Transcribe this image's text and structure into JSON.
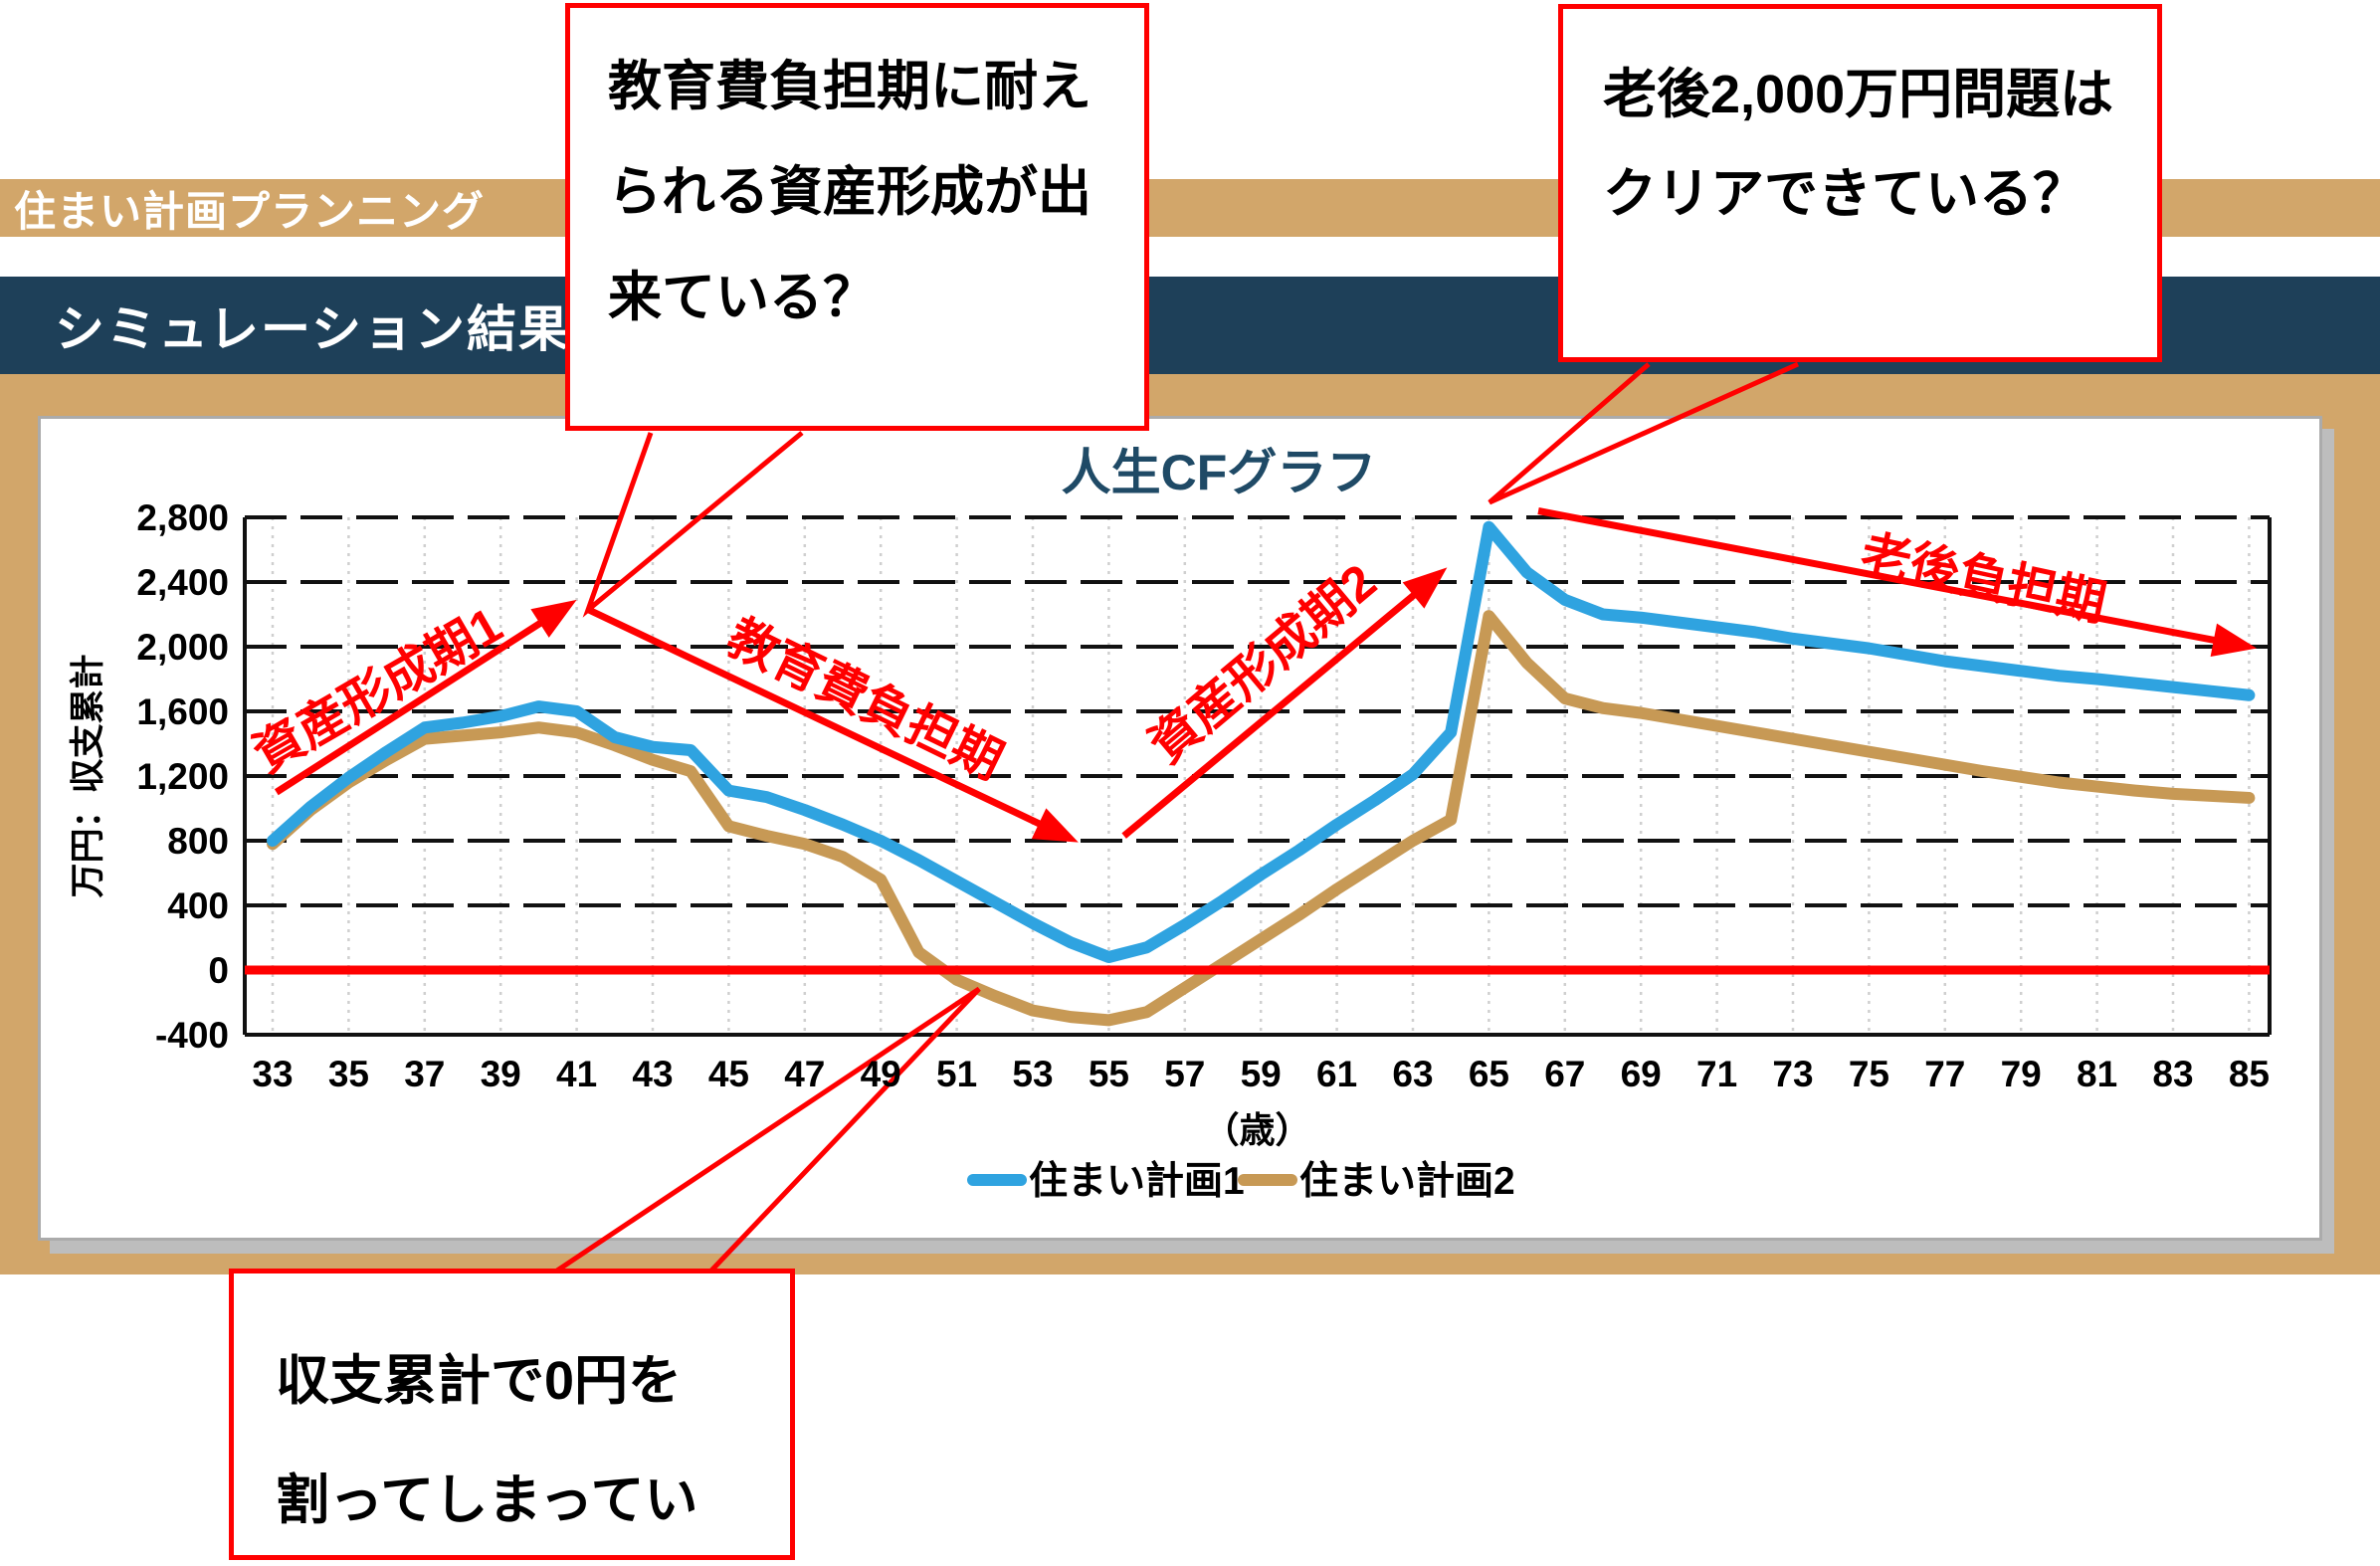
{
  "page": {
    "title_bar": "住まい計画プランニング",
    "section_bar": "シミュレーション結果"
  },
  "colors": {
    "tan_bar": "#D2A66A",
    "navy_bar": "#1E4059",
    "chart_title": "#1F4A66",
    "series1": "#2FA3E0",
    "series2": "#C79955",
    "annotation_red": "#FF0000",
    "grid_black": "#111111",
    "grid_gray": "#CFCFCF",
    "panel_border_gray": "#ABABAB"
  },
  "callouts": {
    "education": {
      "lines": [
        "教育費負担期に耐え",
        "られる資産形成が出",
        "来ている？"
      ]
    },
    "retirement": {
      "lines": [
        "老後2,000万円問題は",
        "クリアできている？"
      ]
    },
    "deficit": {
      "lines": [
        "収支累計で0円を",
        "割ってしまってい"
      ]
    }
  },
  "chart_data": {
    "type": "line",
    "title": "人生CFグラフ",
    "xlabel": "（歳）",
    "ylabel": "万円：収支累計",
    "x_ticks": [
      33,
      35,
      37,
      39,
      41,
      43,
      45,
      47,
      49,
      51,
      53,
      55,
      57,
      59,
      61,
      63,
      65,
      67,
      69,
      71,
      73,
      75,
      77,
      79,
      81,
      83,
      85
    ],
    "xlim": [
      33,
      85
    ],
    "ylim": [
      -400,
      2800
    ],
    "y_tick_step": 400,
    "grid": true,
    "legend_position": "bottom",
    "zero_line": {
      "value": 0,
      "color": "#FF0000"
    },
    "series": [
      {
        "name": "住まい計画1",
        "color": "#2FA3E0",
        "points": [
          [
            33,
            800
          ],
          [
            34,
            1010
          ],
          [
            35,
            1190
          ],
          [
            36,
            1350
          ],
          [
            37,
            1500
          ],
          [
            38,
            1530
          ],
          [
            39,
            1570
          ],
          [
            40,
            1630
          ],
          [
            41,
            1600
          ],
          [
            42,
            1440
          ],
          [
            43,
            1380
          ],
          [
            44,
            1360
          ],
          [
            45,
            1110
          ],
          [
            46,
            1070
          ],
          [
            47,
            990
          ],
          [
            48,
            900
          ],
          [
            49,
            800
          ],
          [
            50,
            680
          ],
          [
            51,
            550
          ],
          [
            52,
            420
          ],
          [
            53,
            290
          ],
          [
            54,
            170
          ],
          [
            55,
            80
          ],
          [
            56,
            140
          ],
          [
            57,
            280
          ],
          [
            58,
            430
          ],
          [
            59,
            590
          ],
          [
            60,
            740
          ],
          [
            61,
            900
          ],
          [
            62,
            1050
          ],
          [
            63,
            1210
          ],
          [
            64,
            1470
          ],
          [
            65,
            2740
          ],
          [
            66,
            2460
          ],
          [
            67,
            2290
          ],
          [
            68,
            2200
          ],
          [
            69,
            2180
          ],
          [
            70,
            2150
          ],
          [
            71,
            2120
          ],
          [
            72,
            2090
          ],
          [
            73,
            2050
          ],
          [
            74,
            2020
          ],
          [
            75,
            1990
          ],
          [
            76,
            1950
          ],
          [
            77,
            1910
          ],
          [
            78,
            1880
          ],
          [
            79,
            1850
          ],
          [
            80,
            1820
          ],
          [
            81,
            1800
          ],
          [
            82,
            1775
          ],
          [
            83,
            1750
          ],
          [
            84,
            1725
          ],
          [
            85,
            1700
          ]
        ]
      },
      {
        "name": "住まい計画2",
        "color": "#C79955",
        "points": [
          [
            33,
            780
          ],
          [
            34,
            990
          ],
          [
            35,
            1160
          ],
          [
            36,
            1300
          ],
          [
            37,
            1430
          ],
          [
            38,
            1450
          ],
          [
            39,
            1470
          ],
          [
            40,
            1500
          ],
          [
            41,
            1470
          ],
          [
            42,
            1390
          ],
          [
            43,
            1300
          ],
          [
            44,
            1230
          ],
          [
            45,
            890
          ],
          [
            46,
            830
          ],
          [
            47,
            780
          ],
          [
            48,
            700
          ],
          [
            49,
            560
          ],
          [
            50,
            110
          ],
          [
            51,
            -60
          ],
          [
            52,
            -160
          ],
          [
            53,
            -250
          ],
          [
            54,
            -290
          ],
          [
            55,
            -310
          ],
          [
            56,
            -260
          ],
          [
            57,
            -110
          ],
          [
            58,
            40
          ],
          [
            59,
            190
          ],
          [
            60,
            340
          ],
          [
            61,
            500
          ],
          [
            62,
            650
          ],
          [
            63,
            800
          ],
          [
            64,
            930
          ],
          [
            65,
            2190
          ],
          [
            66,
            1900
          ],
          [
            67,
            1680
          ],
          [
            68,
            1620
          ],
          [
            69,
            1590
          ],
          [
            70,
            1550
          ],
          [
            71,
            1510
          ],
          [
            72,
            1470
          ],
          [
            73,
            1430
          ],
          [
            74,
            1390
          ],
          [
            75,
            1350
          ],
          [
            76,
            1310
          ],
          [
            77,
            1270
          ],
          [
            78,
            1230
          ],
          [
            79,
            1195
          ],
          [
            80,
            1160
          ],
          [
            81,
            1135
          ],
          [
            82,
            1110
          ],
          [
            83,
            1090
          ],
          [
            84,
            1078
          ],
          [
            85,
            1065
          ]
        ]
      }
    ],
    "annotations": {
      "arrows": [
        {
          "label": "資産形成期1",
          "from": [
            33.1,
            1100
          ],
          "to": [
            41.0,
            2290
          ],
          "label_at": [
            388,
            708
          ],
          "label_rotate": -30
        },
        {
          "label": "教育費負担期",
          "from": [
            41.3,
            2230
          ],
          "to": [
            54.2,
            790
          ],
          "label_at": [
            862,
            718
          ],
          "label_rotate": 26
        },
        {
          "label": "資産形成期2",
          "from": [
            55.4,
            830
          ],
          "to": [
            63.9,
            2490
          ],
          "label_at": [
            1280,
            680
          ],
          "label_rotate": -40
        },
        {
          "label": "老後負担期",
          "from": [
            66.3,
            2840
          ],
          "to": [
            85.2,
            1990
          ],
          "label_at": [
            1990,
            598
          ],
          "label_rotate": 12
        }
      ],
      "callout_tails": [
        {
          "points": [
            [
              654,
              435
            ],
            [
              591,
              613
            ],
            [
              806,
              435
            ]
          ]
        },
        {
          "points": [
            [
              1657,
              366
            ],
            [
              1497,
              505
            ],
            [
              1807,
              366
            ]
          ]
        },
        {
          "points": [
            [
              560,
              1277
            ],
            [
              984,
              994
            ],
            [
              715,
              1277
            ]
          ]
        }
      ]
    }
  }
}
